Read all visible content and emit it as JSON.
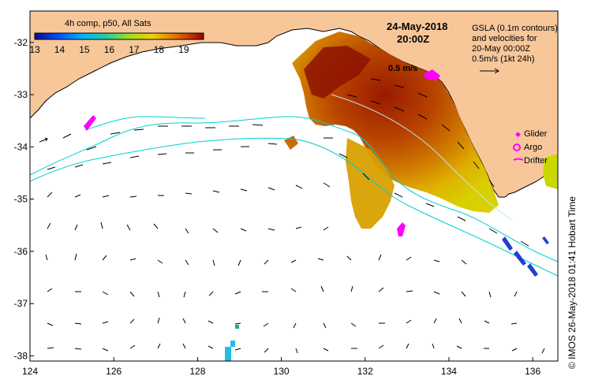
{
  "title": {
    "date": "24-May-2018",
    "time": "20:00Z"
  },
  "colorbar": {
    "label": "4h comp, p50, All Sats",
    "ticks": [
      "13",
      "14",
      "15",
      "16",
      "17",
      "18",
      "19"
    ],
    "range": [
      13,
      19.8
    ]
  },
  "gsla_note": {
    "line1": "GSLA (0.1m contours)",
    "line2": "and velocities for",
    "line3": "20-May 00:00Z",
    "line4": "0.5m/s (1kt 24h)"
  },
  "arrow_label": "0.5 m/s",
  "legend": {
    "glider": "Glider",
    "argo": "Argo",
    "drifter": "Drifter"
  },
  "axes": {
    "x_ticks": [
      "124",
      "126",
      "128",
      "130",
      "132",
      "134",
      "136"
    ],
    "y_ticks": [
      "-32",
      "-33",
      "-34",
      "-35",
      "-36",
      "-37",
      "-38"
    ],
    "lon_range": [
      124,
      136.6
    ],
    "lat_range": [
      -31.4,
      -38.1
    ]
  },
  "credit": "©  IMOS 26-May-2018 01:41 Hobart Time",
  "colors": {
    "land": "#f7c79a",
    "sea": "#ffffff",
    "contour": "#00d0d0",
    "glider": "#ff00ff",
    "current_arrow": "#000000"
  }
}
